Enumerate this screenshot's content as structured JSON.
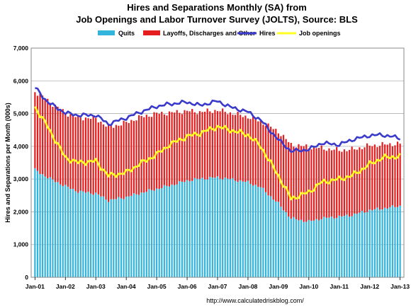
{
  "chart_data": {
    "type": "bar",
    "title_line1": "Hires and Separations Monthly (SA) from",
    "title_line2": "Job Openings and Labor Turnover Survey (JOLTS), Source: BLS",
    "ylabel": "Hires and Separations per Month (000s)",
    "xlabel": "",
    "credit": "http://www.calculatedriskblog.com/",
    "ylim": [
      0,
      7000
    ],
    "yticks": [
      0,
      1000,
      2000,
      3000,
      4000,
      5000,
      6000,
      7000
    ],
    "ytick_labels": [
      "0",
      "1,000",
      "2,000",
      "3,000",
      "4,000",
      "5,000",
      "6,000",
      "7,000"
    ],
    "x_start": "2001-01",
    "x_end": "2013-01",
    "xtick_labels": [
      "Jan-01",
      "Jan-02",
      "Jan-03",
      "Jan-04",
      "Jan-05",
      "Jan-06",
      "Jan-07",
      "Jan-08",
      "Jan-09",
      "Jan-10",
      "Jan-11",
      "Jan-12",
      "Jan-13"
    ],
    "grid": true,
    "legend_position": "top",
    "colors": {
      "quits": "#33b4dc",
      "layoffs": "#e41e1e",
      "hires": "#3a3acc",
      "openings": "#ffff22",
      "grid": "#b0b0b0",
      "plot_bg": "#ffffff",
      "frame": "#8a8a8a"
    },
    "stacked_series": [
      {
        "name": "Quits",
        "key": "quits"
      },
      {
        "name": "Layoffs, Discharges and Other",
        "key": "layoffs"
      }
    ],
    "line_series": [
      {
        "name": "Hires",
        "key": "hires"
      },
      {
        "name": "Job openings",
        "key": "openings"
      }
    ],
    "anchors": {
      "quits": [
        [
          "2001-01",
          3280
        ],
        [
          "2001-06",
          3050
        ],
        [
          "2002-01",
          2780
        ],
        [
          "2002-06",
          2620
        ],
        [
          "2003-01",
          2560
        ],
        [
          "2003-06",
          2350
        ],
        [
          "2004-01",
          2450
        ],
        [
          "2004-06",
          2560
        ],
        [
          "2005-01",
          2700
        ],
        [
          "2005-06",
          2800
        ],
        [
          "2006-01",
          2950
        ],
        [
          "2006-06",
          3010
        ],
        [
          "2007-01",
          3050
        ],
        [
          "2007-06",
          3000
        ],
        [
          "2008-01",
          2900
        ],
        [
          "2008-06",
          2750
        ],
        [
          "2009-01",
          2250
        ],
        [
          "2009-06",
          1800
        ],
        [
          "2010-01",
          1700
        ],
        [
          "2010-06",
          1800
        ],
        [
          "2011-01",
          1850
        ],
        [
          "2011-06",
          1900
        ],
        [
          "2012-01",
          2050
        ],
        [
          "2012-06",
          2100
        ],
        [
          "2013-01",
          2180
        ]
      ],
      "total_separations": [
        [
          "2001-01",
          5680
        ],
        [
          "2001-06",
          5400
        ],
        [
          "2002-01",
          5020
        ],
        [
          "2002-06",
          4880
        ],
        [
          "2003-01",
          4850
        ],
        [
          "2003-06",
          4580
        ],
        [
          "2004-01",
          4720
        ],
        [
          "2004-06",
          4880
        ],
        [
          "2005-01",
          5000
        ],
        [
          "2005-06",
          5020
        ],
        [
          "2006-01",
          5080
        ],
        [
          "2006-06",
          5050
        ],
        [
          "2007-01",
          5100
        ],
        [
          "2007-06",
          5020
        ],
        [
          "2008-01",
          4900
        ],
        [
          "2008-06",
          4760
        ],
        [
          "2009-01",
          4450
        ],
        [
          "2009-06",
          4050
        ],
        [
          "2010-01",
          3980
        ],
        [
          "2010-06",
          3940
        ],
        [
          "2011-01",
          3880
        ],
        [
          "2011-06",
          3900
        ],
        [
          "2012-01",
          4020
        ],
        [
          "2012-06",
          4050
        ],
        [
          "2013-01",
          4080
        ]
      ],
      "hires": [
        [
          "2001-01",
          5800
        ],
        [
          "2001-06",
          5350
        ],
        [
          "2002-01",
          5020
        ],
        [
          "2002-06",
          4950
        ],
        [
          "2003-01",
          4950
        ],
        [
          "2003-06",
          4680
        ],
        [
          "2004-01",
          4870
        ],
        [
          "2004-06",
          5030
        ],
        [
          "2005-01",
          5220
        ],
        [
          "2005-06",
          5290
        ],
        [
          "2006-01",
          5350
        ],
        [
          "2006-06",
          5250
        ],
        [
          "2007-01",
          5380
        ],
        [
          "2007-06",
          5200
        ],
        [
          "2008-01",
          5050
        ],
        [
          "2008-06",
          4800
        ],
        [
          "2009-01",
          4200
        ],
        [
          "2009-06",
          3850
        ],
        [
          "2010-01",
          3900
        ],
        [
          "2010-06",
          4100
        ],
        [
          "2011-01",
          4050
        ],
        [
          "2011-06",
          4200
        ],
        [
          "2012-01",
          4330
        ],
        [
          "2012-06",
          4350
        ],
        [
          "2013-01",
          4250
        ]
      ],
      "openings": [
        [
          "2001-01",
          5200
        ],
        [
          "2001-06",
          4600
        ],
        [
          "2002-01",
          3650
        ],
        [
          "2002-06",
          3500
        ],
        [
          "2003-01",
          3550
        ],
        [
          "2003-06",
          3100
        ],
        [
          "2004-01",
          3200
        ],
        [
          "2004-06",
          3450
        ],
        [
          "2005-01",
          3750
        ],
        [
          "2005-06",
          4050
        ],
        [
          "2006-01",
          4300
        ],
        [
          "2006-06",
          4400
        ],
        [
          "2007-01",
          4600
        ],
        [
          "2007-06",
          4500
        ],
        [
          "2008-01",
          4350
        ],
        [
          "2008-06",
          4000
        ],
        [
          "2009-01",
          3100
        ],
        [
          "2009-06",
          2400
        ],
        [
          "2010-01",
          2600
        ],
        [
          "2010-06",
          2900
        ],
        [
          "2011-01",
          3000
        ],
        [
          "2011-06",
          3100
        ],
        [
          "2012-01",
          3450
        ],
        [
          "2012-06",
          3650
        ],
        [
          "2013-01",
          3700
        ]
      ]
    }
  }
}
